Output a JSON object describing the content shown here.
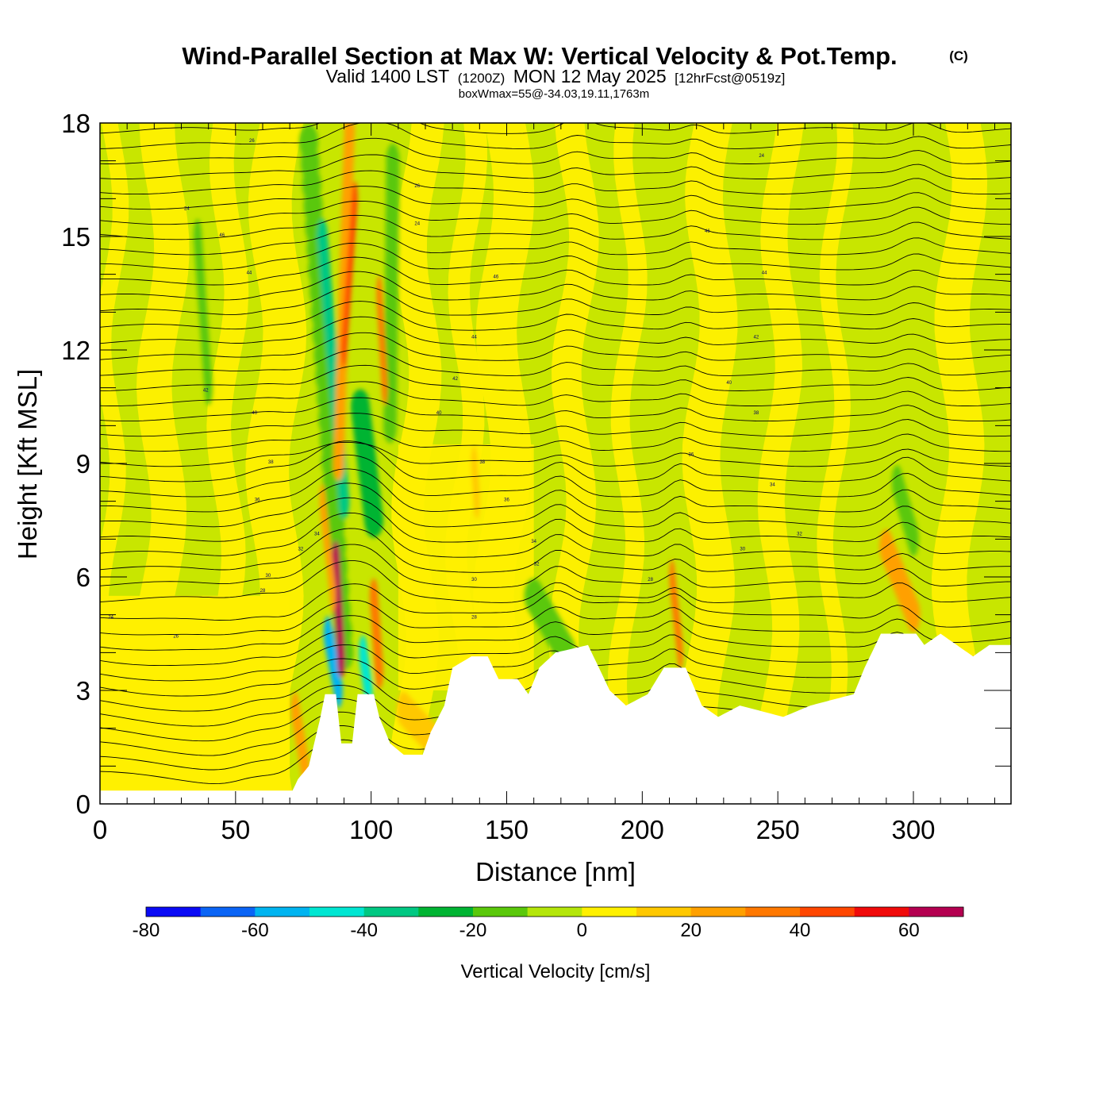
{
  "title": {
    "main": "Wind-Parallel Section at Max W: Vertical Velocity & Pot.Temp.",
    "copyright": "(C)",
    "valid_prefix": "Valid 1400 LST",
    "valid_utc": "(1200Z)",
    "valid_date": "MON 12 May 2025",
    "forecast": "[12hrFcst@0519z]",
    "box_info": "boxWmax=55@-34.03,19.11,1763m"
  },
  "chart_data": {
    "type": "heatmap",
    "title": "Wind-Parallel Section at Max W: Vertical Velocity & Pot.Temp.",
    "xlabel": "Distance [nm]",
    "ylabel": "Height [Kft MSL]",
    "xlim": [
      0,
      336
    ],
    "ylim": [
      0,
      18
    ],
    "xticks": [
      0,
      50,
      100,
      150,
      200,
      250,
      300
    ],
    "yticks": [
      0,
      3,
      6,
      9,
      12,
      15,
      18
    ],
    "terrain_kft": [
      [
        0,
        0.35
      ],
      [
        71,
        0.35
      ],
      [
        73,
        0.65
      ],
      [
        77,
        1.0
      ],
      [
        79,
        1.6
      ],
      [
        81,
        2.2
      ],
      [
        83,
        2.9
      ],
      [
        87,
        2.9
      ],
      [
        89,
        1.6
      ],
      [
        93,
        1.6
      ],
      [
        95,
        2.9
      ],
      [
        101,
        2.9
      ],
      [
        103,
        2.3
      ],
      [
        107,
        1.6
      ],
      [
        112,
        1.3
      ],
      [
        119,
        1.3
      ],
      [
        122,
        1.9
      ],
      [
        127,
        2.6
      ],
      [
        130,
        3.6
      ],
      [
        137,
        3.9
      ],
      [
        143,
        3.9
      ],
      [
        147,
        3.3
      ],
      [
        154,
        3.3
      ],
      [
        158,
        2.9
      ],
      [
        162,
        3.6
      ],
      [
        168,
        4.0
      ],
      [
        180,
        4.2
      ],
      [
        184,
        3.6
      ],
      [
        188,
        3.0
      ],
      [
        194,
        2.6
      ],
      [
        202,
        2.9
      ],
      [
        208,
        3.6
      ],
      [
        216,
        3.6
      ],
      [
        222,
        2.6
      ],
      [
        228,
        2.3
      ],
      [
        236,
        2.6
      ],
      [
        252,
        2.3
      ],
      [
        262,
        2.6
      ],
      [
        278,
        2.9
      ],
      [
        282,
        3.6
      ],
      [
        288,
        4.5
      ],
      [
        294,
        4.5
      ],
      [
        301,
        4.5
      ],
      [
        304,
        4.2
      ],
      [
        310,
        4.5
      ],
      [
        316,
        4.2
      ],
      [
        322,
        3.9
      ],
      [
        328,
        4.2
      ],
      [
        336,
        4.2
      ]
    ],
    "updrafts": [
      {
        "x": 88,
        "center_kft": 5.2,
        "cm_s": 62
      },
      {
        "x": 102,
        "center_kft": 4.8,
        "cm_s": 38
      },
      {
        "x": 89,
        "center_kft": 15.0,
        "cm_s": 40
      },
      {
        "x": 104,
        "center_kft": 12.0,
        "cm_s": 32
      },
      {
        "x": 212,
        "center_kft": 5.4,
        "cm_s": 30
      },
      {
        "x": 296,
        "center_kft": 5.8,
        "cm_s": 28
      },
      {
        "x": 74,
        "center_kft": 1.5,
        "cm_s": 30
      }
    ],
    "downdrafts": [
      {
        "x": 84,
        "center_kft": 3.5,
        "cm_s": -62
      },
      {
        "x": 96,
        "center_kft": 3.4,
        "cm_s": -45
      },
      {
        "x": 88,
        "center_kft": 13.0,
        "cm_s": -38
      },
      {
        "x": 100,
        "center_kft": 8.5,
        "cm_s": -25
      },
      {
        "x": 168,
        "center_kft": 4.8,
        "cm_s": -22
      },
      {
        "x": 40,
        "center_kft": 13.5,
        "cm_s": -18
      },
      {
        "x": 296,
        "center_kft": 7.8,
        "cm_s": -12
      }
    ],
    "contour_labels": [
      "24",
      "26",
      "28",
      "30",
      "32",
      "34",
      "36",
      "38",
      "40",
      "42",
      "44",
      "46"
    ],
    "colorbar": {
      "label": "Vertical Velocity [cm/s]",
      "bounds": [
        -80,
        -70,
        -60,
        -50,
        -40,
        -30,
        -20,
        -10,
        0,
        10,
        20,
        30,
        40,
        50,
        60,
        70
      ],
      "tick_values": [
        "-80",
        "-60",
        "-40",
        "-20",
        "0",
        "20",
        "40",
        "60"
      ],
      "colors": [
        "#0a0af5",
        "#0a64f5",
        "#00b4f0",
        "#00e6d2",
        "#00c882",
        "#00b432",
        "#5ac80a",
        "#b4e60a",
        "#fff000",
        "#ffc800",
        "#ffa000",
        "#ff7800",
        "#ff4600",
        "#f00a0a",
        "#b40050"
      ]
    }
  }
}
